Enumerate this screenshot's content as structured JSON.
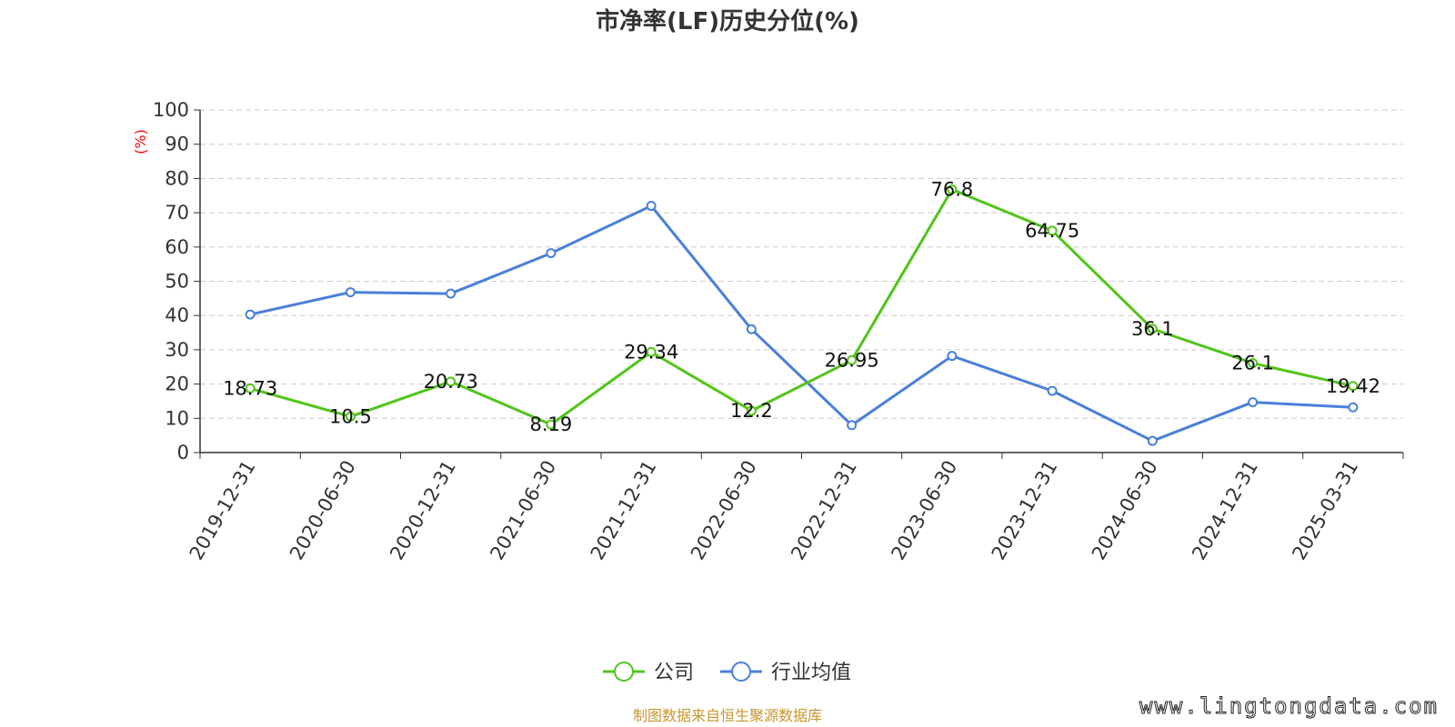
{
  "chart_data": {
    "type": "line",
    "title": "市净率(LF)历史分位(%)",
    "ylabel": "(%)",
    "xlabel": "",
    "ylim": [
      0,
      100
    ],
    "yticks": [
      0,
      10,
      20,
      30,
      40,
      50,
      60,
      70,
      80,
      90,
      100
    ],
    "categories": [
      "2019-12-31",
      "2020-06-30",
      "2020-12-31",
      "2021-06-30",
      "2021-12-31",
      "2022-06-30",
      "2022-12-31",
      "2023-06-30",
      "2023-12-31",
      "2024-06-30",
      "2024-12-31",
      "2025-03-31"
    ],
    "grid": true,
    "legend_position": "bottom",
    "series": [
      {
        "name": "公司",
        "color": "#52c41a",
        "show_labels": true,
        "values": [
          18.73,
          10.5,
          20.73,
          8.19,
          29.34,
          12.2,
          26.95,
          76.8,
          64.75,
          36.1,
          26.1,
          19.42
        ],
        "labels": [
          "18.73",
          "10.5",
          "20.73",
          "8.19",
          "29.34",
          "12.2",
          "26.95",
          "76.8",
          "64.75",
          "36.1",
          "26.1",
          "19.42"
        ]
      },
      {
        "name": "行业均值",
        "color": "#4a7fd9",
        "show_labels": false,
        "values": [
          40.3,
          46.8,
          46.4,
          58.2,
          72.0,
          36.0,
          8.0,
          28.2,
          18.0,
          3.4,
          14.7,
          13.2
        ]
      }
    ]
  },
  "footer": {
    "source": "制图数据来自恒生聚源数据库",
    "watermark": "www.lingtongdata.com"
  }
}
